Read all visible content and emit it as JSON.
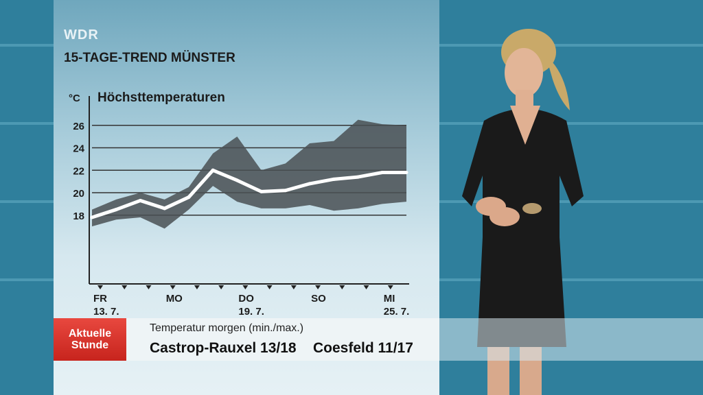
{
  "broadcaster": "WDR",
  "title": "15-TAGE-TREND MÜNSTER",
  "lower_third": {
    "logo": [
      "Aktuelle",
      "Stunde"
    ],
    "subtitle": "Temperatur morgen (min./max.)",
    "city1": "Castrop-Rauxel 13/18",
    "city2": "Coesfeld 11/17"
  },
  "chart_data": {
    "type": "line",
    "title": "Höchsttemperaturen",
    "ylabel": "°C",
    "ylim": [
      12,
      28
    ],
    "yticks": [
      18,
      20,
      22,
      24,
      26
    ],
    "x_tick_labels": [
      {
        "day": 0,
        "label": [
          "FR",
          "13. 7."
        ]
      },
      {
        "day": 3,
        "label": [
          "MO",
          ""
        ]
      },
      {
        "day": 6,
        "label": [
          "DO",
          "19. 7."
        ]
      },
      {
        "day": 9,
        "label": [
          "SO",
          ""
        ]
      },
      {
        "day": 12,
        "label": [
          "MI",
          "25. 7."
        ]
      }
    ],
    "days": 14,
    "series": [
      {
        "values": [
          17.8,
          18.5,
          19.3,
          18.6,
          19.6,
          22.0,
          21.1,
          20.1,
          20.2,
          20.8,
          21.2,
          21.4,
          21.8,
          21.8
        ]
      }
    ],
    "band": {
      "upper": [
        18.5,
        19.4,
        20.0,
        19.4,
        20.5,
        23.5,
        25.0,
        22.0,
        22.6,
        24.4,
        24.6,
        26.5,
        26.1,
        26.0
      ],
      "lower": [
        17.0,
        17.6,
        17.8,
        16.8,
        18.5,
        20.6,
        19.2,
        18.6,
        18.6,
        18.9,
        18.4,
        18.6,
        19.0,
        19.2
      ]
    }
  },
  "colors": {
    "band": "#4a5054",
    "line": "#ffffff",
    "gridline": "#333333",
    "logo_red": "#d2322a"
  }
}
